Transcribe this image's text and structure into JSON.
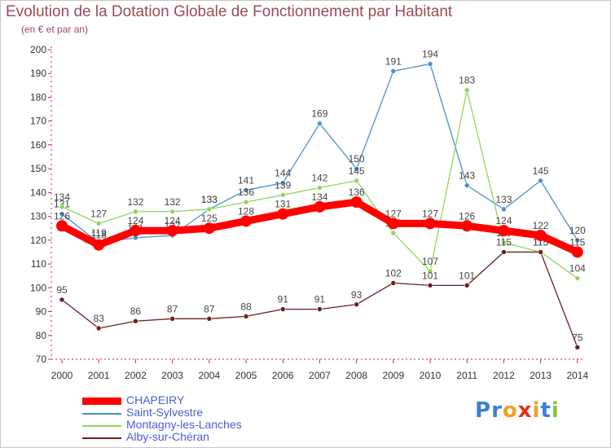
{
  "chart_data": {
    "type": "line",
    "title": "Evolution de la Dotation Globale de Fonctionnement par Habitant",
    "subtitle": "(en € et par an)",
    "categories": [
      "2000",
      "2001",
      "2002",
      "2003",
      "2004",
      "2005",
      "2006",
      "2007",
      "2008",
      "2009",
      "2010",
      "2011",
      "2012",
      "2013",
      "2014"
    ],
    "ylim": [
      70,
      200
    ],
    "yticks": [
      70,
      80,
      90,
      100,
      110,
      120,
      130,
      140,
      150,
      160,
      170,
      180,
      190,
      200
    ],
    "grid": false,
    "legend_position": "bottom-left",
    "series": [
      {
        "name": "Saint-Sylvestre",
        "color": "#4b8fd0",
        "values": [
          131,
          119,
          121,
          122,
          133,
          141,
          144,
          169,
          150,
          191,
          194,
          143,
          133,
          145,
          120
        ]
      },
      {
        "name": "Montagny-les-Lanches",
        "color": "#8ed65a",
        "values": [
          134,
          127,
          132,
          132,
          133,
          136,
          139,
          142,
          145,
          123,
          107,
          183,
          119,
          115,
          104
        ]
      },
      {
        "name": "Alby-sur-Chéran",
        "color": "#6b1e1e",
        "values": [
          95,
          83,
          86,
          87,
          87,
          88,
          91,
          91,
          93,
          102,
          101,
          101,
          115,
          115,
          75
        ]
      },
      {
        "name": "CHAPEIRY",
        "color": "#ff0000",
        "values": [
          126,
          118,
          124,
          124,
          125,
          128,
          131,
          134,
          136,
          127,
          127,
          126,
          124,
          122,
          115
        ]
      }
    ],
    "legend_order": [
      "CHAPEIRY",
      "Saint-Sylvestre",
      "Montagny-les-Lanches",
      "Alby-sur-Chéran"
    ]
  },
  "logo": {
    "text": "Proxiti",
    "letter_colors": [
      "#3a7fd0",
      "#3a7fd0",
      "#f0a020",
      "#e03020",
      "#f0a020",
      "#3a7fd0",
      "#8ac040"
    ]
  }
}
